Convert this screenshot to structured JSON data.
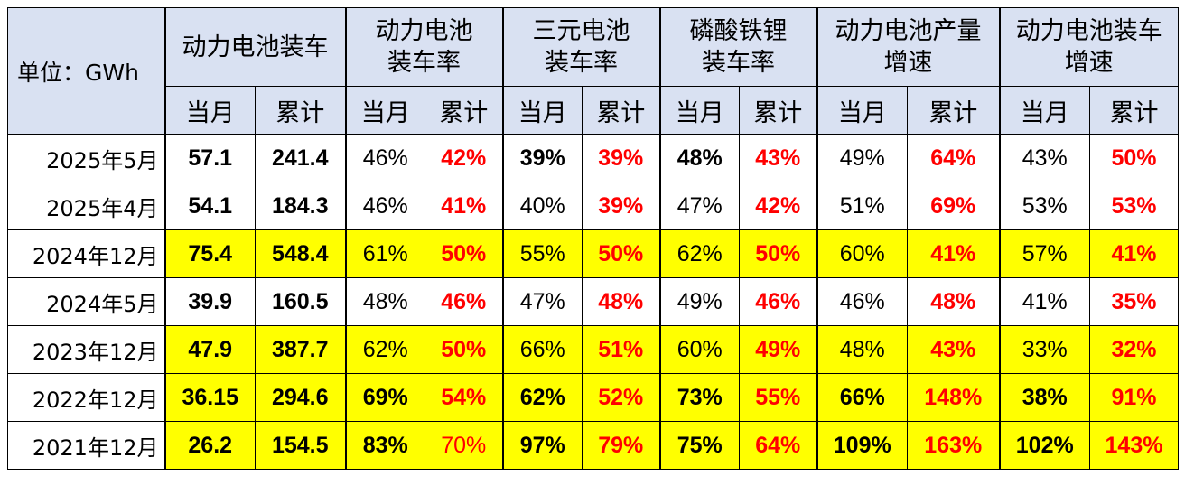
{
  "unit_label": "单位：GWh",
  "groups": [
    {
      "line1": "动力电池装车",
      "line2": ""
    },
    {
      "line1": "动力电池",
      "line2": "装车率"
    },
    {
      "line1": "三元电池",
      "line2": "装车率"
    },
    {
      "line1": "磷酸铁锂",
      "line2": "装车率"
    },
    {
      "line1": "动力电池产量",
      "line2": "增速"
    },
    {
      "line1": "动力电池装车",
      "line2": "增速"
    }
  ],
  "sub_headers": [
    "当月",
    "累计",
    "当月",
    "累计",
    "当月",
    "累计",
    "当月",
    "累计",
    "当月",
    "累计",
    "当月",
    "累计"
  ],
  "rows": [
    {
      "label": "2025年5月",
      "highlight": false,
      "cells": [
        {
          "v": "57.1",
          "bold": true,
          "red": false
        },
        {
          "v": "241.4",
          "bold": true,
          "red": false
        },
        {
          "v": "46%",
          "bold": false,
          "red": false
        },
        {
          "v": "42%",
          "bold": true,
          "red": true
        },
        {
          "v": "39%",
          "bold": true,
          "red": false
        },
        {
          "v": "39%",
          "bold": true,
          "red": true
        },
        {
          "v": "48%",
          "bold": true,
          "red": false
        },
        {
          "v": "43%",
          "bold": true,
          "red": true
        },
        {
          "v": "49%",
          "bold": false,
          "red": false
        },
        {
          "v": "64%",
          "bold": true,
          "red": true
        },
        {
          "v": "43%",
          "bold": false,
          "red": false
        },
        {
          "v": "50%",
          "bold": true,
          "red": true
        }
      ]
    },
    {
      "label": "2025年4月",
      "highlight": false,
      "cells": [
        {
          "v": "54.1",
          "bold": true,
          "red": false
        },
        {
          "v": "184.3",
          "bold": true,
          "red": false
        },
        {
          "v": "46%",
          "bold": false,
          "red": false
        },
        {
          "v": "41%",
          "bold": true,
          "red": true
        },
        {
          "v": "40%",
          "bold": false,
          "red": false
        },
        {
          "v": "39%",
          "bold": true,
          "red": true
        },
        {
          "v": "47%",
          "bold": false,
          "red": false
        },
        {
          "v": "42%",
          "bold": true,
          "red": true
        },
        {
          "v": "51%",
          "bold": false,
          "red": false
        },
        {
          "v": "69%",
          "bold": true,
          "red": true
        },
        {
          "v": "53%",
          "bold": false,
          "red": false
        },
        {
          "v": "53%",
          "bold": true,
          "red": true
        }
      ]
    },
    {
      "label": "2024年12月",
      "highlight": true,
      "cells": [
        {
          "v": "75.4",
          "bold": true,
          "red": false
        },
        {
          "v": "548.4",
          "bold": true,
          "red": false
        },
        {
          "v": "61%",
          "bold": false,
          "red": false
        },
        {
          "v": "50%",
          "bold": true,
          "red": true
        },
        {
          "v": "55%",
          "bold": false,
          "red": false
        },
        {
          "v": "50%",
          "bold": true,
          "red": true
        },
        {
          "v": "62%",
          "bold": false,
          "red": false
        },
        {
          "v": "50%",
          "bold": true,
          "red": true
        },
        {
          "v": "60%",
          "bold": false,
          "red": false
        },
        {
          "v": "41%",
          "bold": true,
          "red": true
        },
        {
          "v": "57%",
          "bold": false,
          "red": false
        },
        {
          "v": "41%",
          "bold": true,
          "red": true
        }
      ]
    },
    {
      "label": "2024年5月",
      "highlight": false,
      "cells": [
        {
          "v": "39.9",
          "bold": true,
          "red": false
        },
        {
          "v": "160.5",
          "bold": true,
          "red": false
        },
        {
          "v": "48%",
          "bold": false,
          "red": false
        },
        {
          "v": "46%",
          "bold": true,
          "red": true
        },
        {
          "v": "47%",
          "bold": false,
          "red": false
        },
        {
          "v": "48%",
          "bold": true,
          "red": true
        },
        {
          "v": "49%",
          "bold": false,
          "red": false
        },
        {
          "v": "46%",
          "bold": true,
          "red": true
        },
        {
          "v": "46%",
          "bold": false,
          "red": false
        },
        {
          "v": "48%",
          "bold": true,
          "red": true
        },
        {
          "v": "41%",
          "bold": false,
          "red": false
        },
        {
          "v": "35%",
          "bold": true,
          "red": true
        }
      ]
    },
    {
      "label": "2023年12月",
      "highlight": true,
      "cells": [
        {
          "v": "47.9",
          "bold": true,
          "red": false
        },
        {
          "v": "387.7",
          "bold": true,
          "red": false
        },
        {
          "v": "62%",
          "bold": false,
          "red": false
        },
        {
          "v": "50%",
          "bold": true,
          "red": true
        },
        {
          "v": "66%",
          "bold": false,
          "red": false
        },
        {
          "v": "51%",
          "bold": true,
          "red": true
        },
        {
          "v": "60%",
          "bold": false,
          "red": false
        },
        {
          "v": "49%",
          "bold": true,
          "red": true
        },
        {
          "v": "48%",
          "bold": false,
          "red": false
        },
        {
          "v": "43%",
          "bold": true,
          "red": true
        },
        {
          "v": "33%",
          "bold": false,
          "red": false
        },
        {
          "v": "32%",
          "bold": true,
          "red": true
        }
      ]
    },
    {
      "label": "2022年12月",
      "highlight": true,
      "cells": [
        {
          "v": "36.15",
          "bold": true,
          "red": false
        },
        {
          "v": "294.6",
          "bold": true,
          "red": false
        },
        {
          "v": "69%",
          "bold": true,
          "red": false
        },
        {
          "v": "54%",
          "bold": true,
          "red": true
        },
        {
          "v": "62%",
          "bold": true,
          "red": false
        },
        {
          "v": "52%",
          "bold": true,
          "red": true
        },
        {
          "v": "73%",
          "bold": true,
          "red": false
        },
        {
          "v": "55%",
          "bold": true,
          "red": true
        },
        {
          "v": "66%",
          "bold": true,
          "red": false
        },
        {
          "v": "148%",
          "bold": true,
          "red": true
        },
        {
          "v": "38%",
          "bold": true,
          "red": false
        },
        {
          "v": "91%",
          "bold": true,
          "red": true
        }
      ]
    },
    {
      "label": "2021年12月",
      "highlight": true,
      "cells": [
        {
          "v": "26.2",
          "bold": true,
          "red": false
        },
        {
          "v": "154.5",
          "bold": true,
          "red": false
        },
        {
          "v": "83%",
          "bold": true,
          "red": false
        },
        {
          "v": "70%",
          "bold": false,
          "red": true
        },
        {
          "v": "97%",
          "bold": true,
          "red": false
        },
        {
          "v": "79%",
          "bold": true,
          "red": true
        },
        {
          "v": "75%",
          "bold": true,
          "red": false
        },
        {
          "v": "64%",
          "bold": true,
          "red": true
        },
        {
          "v": "109%",
          "bold": true,
          "red": false
        },
        {
          "v": "163%",
          "bold": true,
          "red": true
        },
        {
          "v": "102%",
          "bold": true,
          "red": false
        },
        {
          "v": "143%",
          "bold": true,
          "red": true
        }
      ]
    }
  ],
  "colors": {
    "header_bg": "#d9e1f2",
    "highlight_bg": "#ffff00",
    "accent_red": "#ff0000",
    "text": "#000000"
  }
}
